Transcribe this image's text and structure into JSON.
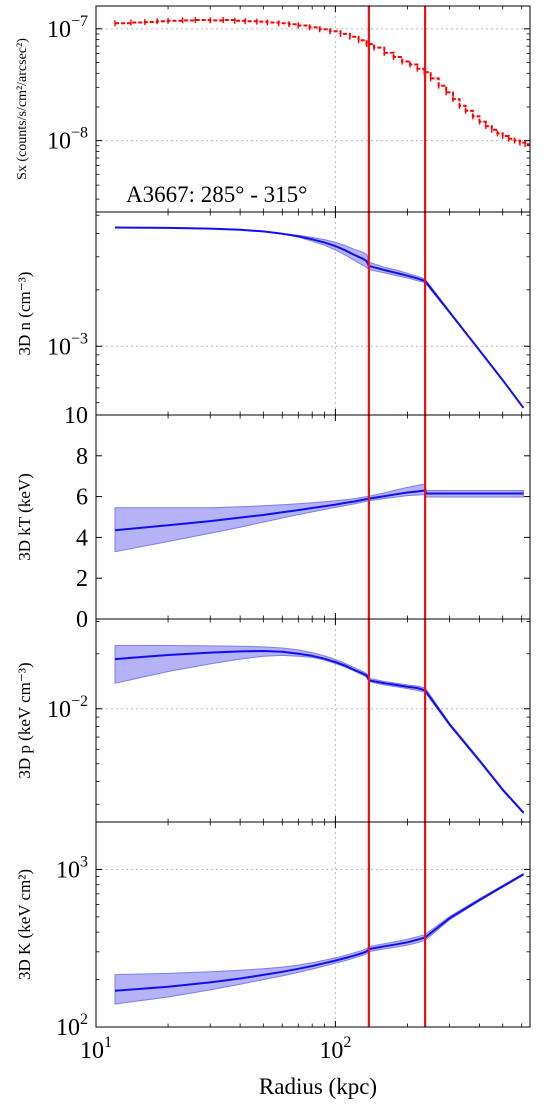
{
  "figure": {
    "xlabel": "Radius (kpc)",
    "annotation": "A3667: 285° - 315°"
  },
  "colors": {
    "data": "#ff0000",
    "model": "#1010ee",
    "band": "#9a9af2",
    "band_edge": "#7d7df0",
    "vline": "#ee1111",
    "grid": "#b8b8b8"
  },
  "chart_data": [
    {
      "id": "sx",
      "type": "scatter",
      "ylabel": "Sx (counts/s/cm²/arcsec²)",
      "xscale": "log",
      "yscale": "log",
      "xlim": [
        10,
        650
      ],
      "ylim": [
        2.3e-09,
        1.6e-07
      ],
      "yticks": [
        {
          "value": 1e-08,
          "base": "10",
          "exp": "−8"
        },
        {
          "value": 1e-07,
          "base": "10",
          "exp": "−7"
        }
      ],
      "grid": true,
      "series": [
        {
          "style": "dashed-steps",
          "x": [
            12,
            14,
            16,
            18,
            20,
            23,
            26,
            30,
            34,
            38,
            42,
            47,
            52,
            58,
            64,
            70,
            78,
            86,
            95,
            105,
            115,
            125,
            135,
            145,
            160,
            175,
            190,
            205,
            220,
            235,
            250,
            270,
            290,
            310,
            330,
            350,
            375,
            400,
            425,
            450,
            475,
            500,
            530,
            560,
            590,
            620
          ],
          "y": [
            1.12e-07,
            1.14e-07,
            1.15e-07,
            1.17e-07,
            1.18e-07,
            1.19e-07,
            1.2e-07,
            1.19e-07,
            1.2e-07,
            1.18e-07,
            1.17e-07,
            1.16e-07,
            1.14e-07,
            1.12e-07,
            1.1e-07,
            1.07e-07,
            1.03e-07,
            9.9e-08,
            9.5e-08,
            9e-08,
            8.5e-08,
            7.9e-08,
            7.3e-08,
            6.8e-08,
            6.1e-08,
            5.6e-08,
            5.1e-08,
            4.8e-08,
            4.4e-08,
            4.1e-08,
            3.6e-08,
            3.1e-08,
            2.7e-08,
            2.35e-08,
            2.05e-08,
            1.85e-08,
            1.65e-08,
            1.48e-08,
            1.35e-08,
            1.25e-08,
            1.16e-08,
            1.1e-08,
            1.04e-08,
            1e-08,
            9.6e-09,
            9.3e-09
          ]
        }
      ]
    },
    {
      "id": "n",
      "type": "line",
      "ylabel": "3D n (cm⁻³)",
      "xscale": "log",
      "yscale": "log",
      "xlim": [
        10,
        650
      ],
      "ylim": [
        0.00043,
        0.0052
      ],
      "yticks": [
        {
          "value": 0.001,
          "base": "10",
          "exp": "−3"
        }
      ],
      "grid": true,
      "series": [
        {
          "x": [
            12,
            20,
            30,
            40,
            50,
            60,
            70,
            80,
            90,
            100,
            110,
            120,
            130,
            135,
            138,
            160,
            180,
            200,
            220,
            237,
            300,
            400,
            500,
            610
          ],
          "y": [
            0.0043,
            0.00428,
            0.00424,
            0.00418,
            0.0041,
            0.00398,
            0.00386,
            0.00372,
            0.00358,
            0.00342,
            0.00325,
            0.00307,
            0.00293,
            0.00285,
            0.00268,
            0.00255,
            0.00246,
            0.00238,
            0.0023,
            0.00223,
            0.00152,
            0.00095,
            0.00066,
            0.00047
          ],
          "band_width": [
            0.0,
            0.0,
            0.0,
            0.0,
            0.0,
            0.0,
            0.005,
            0.01,
            0.015,
            0.02,
            0.025,
            0.03,
            0.035,
            0.035,
            0.02,
            0.015,
            0.015,
            0.012,
            0.012,
            0.01,
            0.005,
            0.0,
            0.0,
            0.0
          ]
        }
      ]
    },
    {
      "id": "kt",
      "type": "area",
      "ylabel": "3D kT (keV)",
      "xscale": "log",
      "yscale": "linear",
      "xlim": [
        10,
        650
      ],
      "ylim": [
        0,
        10
      ],
      "yticks": [
        {
          "value": 0,
          "label": "0"
        },
        {
          "value": 2,
          "label": "2"
        },
        {
          "value": 4,
          "label": "4"
        },
        {
          "value": 6,
          "label": "6"
        },
        {
          "value": 8,
          "label": "8"
        },
        {
          "value": 10,
          "label": "10"
        }
      ],
      "grid": false,
      "series": [
        {
          "x": [
            12,
            20,
            30,
            40,
            50,
            60,
            70,
            80,
            90,
            100,
            110,
            120,
            138,
            160,
            180,
            200,
            220,
            237,
            240,
            300,
            400,
            500,
            610
          ],
          "y": [
            4.35,
            4.6,
            4.8,
            4.97,
            5.1,
            5.23,
            5.34,
            5.44,
            5.53,
            5.61,
            5.69,
            5.76,
            5.9,
            6.02,
            6.12,
            6.2,
            6.25,
            6.3,
            6.15,
            6.15,
            6.15,
            6.15,
            6.15
          ],
          "lower": [
            3.3,
            3.8,
            4.2,
            4.5,
            4.75,
            4.95,
            5.12,
            5.25,
            5.37,
            5.47,
            5.56,
            5.64,
            5.8,
            5.9,
            5.98,
            6.05,
            6.08,
            6.1,
            5.98,
            5.98,
            5.98,
            5.98,
            5.98
          ],
          "upper": [
            5.45,
            5.45,
            5.45,
            5.5,
            5.55,
            5.6,
            5.65,
            5.7,
            5.75,
            5.8,
            5.85,
            5.9,
            6.02,
            6.18,
            6.33,
            6.45,
            6.55,
            6.62,
            6.3,
            6.3,
            6.3,
            6.3,
            6.3
          ]
        }
      ]
    },
    {
      "id": "p",
      "type": "area",
      "ylabel": "3D p (keV cm⁻³)",
      "xscale": "log",
      "yscale": "log",
      "xlim": [
        10,
        650
      ],
      "ylim": [
        0.0024,
        0.031
      ],
      "yticks": [
        {
          "value": 0.01,
          "base": "10",
          "exp": "−2"
        }
      ],
      "grid": true,
      "series": [
        {
          "x": [
            12,
            20,
            30,
            40,
            50,
            60,
            70,
            80,
            90,
            100,
            110,
            120,
            130,
            135,
            138,
            160,
            180,
            200,
            220,
            237,
            300,
            400,
            500,
            610
          ],
          "y": [
            0.0187,
            0.0197,
            0.0203,
            0.0206,
            0.0207,
            0.0205,
            0.02,
            0.0195,
            0.0188,
            0.018,
            0.0172,
            0.0163,
            0.0156,
            0.0152,
            0.0143,
            0.0138,
            0.0135,
            0.0132,
            0.013,
            0.0126,
            0.0082,
            0.0052,
            0.0036,
            0.0027
          ],
          "lower": [
            0.0138,
            0.016,
            0.0176,
            0.0187,
            0.0194,
            0.0196,
            0.0194,
            0.0191,
            0.0185,
            0.0177,
            0.0169,
            0.0161,
            0.0153,
            0.0149,
            0.0141,
            0.0135,
            0.0132,
            0.0129,
            0.0126,
            0.0123,
            0.0081,
            0.00515,
            0.00358,
            0.00268
          ],
          "upper": [
            0.0222,
            0.0222,
            0.0221,
            0.022,
            0.0218,
            0.0215,
            0.021,
            0.0203,
            0.0195,
            0.0186,
            0.0177,
            0.0168,
            0.016,
            0.0156,
            0.0147,
            0.0141,
            0.0138,
            0.0135,
            0.0133,
            0.013,
            0.00835,
            0.00528,
            0.00365,
            0.00273
          ]
        }
      ]
    },
    {
      "id": "k",
      "type": "area",
      "ylabel": "3D K (keV cm²)",
      "xscale": "log",
      "yscale": "log",
      "xlim": [
        10,
        650
      ],
      "ylim": [
        100,
        2000
      ],
      "yticks": [
        {
          "value": 100,
          "base": "10",
          "exp": "2"
        },
        {
          "value": 1000,
          "base": "10",
          "exp": "3"
        }
      ],
      "grid": true,
      "series": [
        {
          "x": [
            12,
            20,
            30,
            40,
            50,
            60,
            70,
            80,
            90,
            100,
            110,
            120,
            130,
            135,
            138,
            160,
            180,
            200,
            220,
            237,
            300,
            400,
            500,
            610
          ],
          "y": [
            170,
            180,
            192,
            203,
            214,
            224,
            234,
            244,
            254,
            264,
            274,
            284,
            295,
            302,
            312,
            325,
            335,
            345,
            358,
            370,
            490,
            640,
            780,
            930
          ],
          "lower": [
            140,
            155,
            172,
            187,
            200,
            211,
            222,
            233,
            244,
            254,
            264,
            274,
            285,
            292,
            301,
            313,
            322,
            331,
            343,
            355,
            480,
            630,
            770,
            920
          ],
          "upper": [
            215,
            219,
            224,
            229,
            234,
            240,
            247,
            256,
            265,
            275,
            285,
            296,
            307,
            314,
            324,
            338,
            349,
            361,
            374,
            386,
            502,
            652,
            792,
            942
          ]
        }
      ]
    }
  ],
  "vertical_lines": [
    {
      "x": 138
    },
    {
      "x": 237
    }
  ],
  "xaxis": {
    "ticks": [
      {
        "value": 10,
        "base": "10",
        "exp": "1"
      },
      {
        "value": 100,
        "base": "10",
        "exp": "2"
      }
    ]
  }
}
